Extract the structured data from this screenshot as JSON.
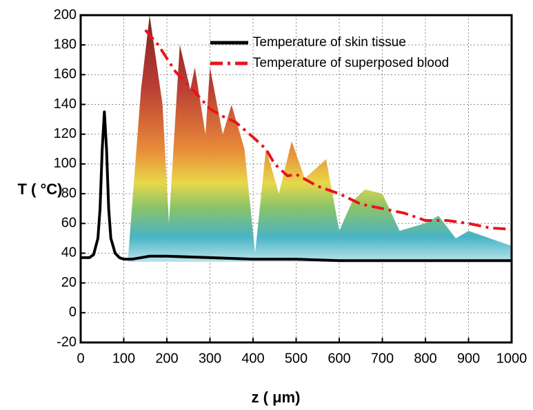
{
  "chart_data": {
    "type": "line",
    "x_label": "z ( μm)",
    "y_label": "T ( °C)",
    "xlim": [
      0,
      1000
    ],
    "xticks": [
      0,
      100,
      200,
      300,
      400,
      500,
      600,
      700,
      800,
      900,
      1000
    ],
    "ylim": [
      -20,
      200
    ],
    "yticks": [
      -20,
      0,
      20,
      40,
      60,
      80,
      100,
      120,
      140,
      160,
      180,
      200
    ],
    "grid": true,
    "series": [
      {
        "name": "Temperature of skin tissue",
        "color": "#000000",
        "linestyle": "solid",
        "x": [
          0,
          20,
          30,
          40,
          45,
          50,
          55,
          60,
          65,
          70,
          80,
          90,
          100,
          120,
          140,
          160,
          200,
          300,
          400,
          500,
          600,
          700,
          800,
          900,
          1000
        ],
        "values": [
          37,
          37,
          39,
          50,
          70,
          110,
          135,
          110,
          70,
          50,
          40,
          37,
          36,
          36,
          37,
          38,
          38,
          37,
          36,
          36,
          35,
          35,
          35,
          35,
          35
        ]
      },
      {
        "name": "Temperature of superposed blood",
        "color": "#e8141c",
        "linestyle": "dashdot",
        "x": [
          150,
          180,
          220,
          260,
          300,
          330,
          360,
          400,
          430,
          450,
          480,
          500,
          550,
          600,
          650,
          700,
          750,
          800,
          850,
          900,
          950,
          1000
        ],
        "values": [
          190,
          180,
          162,
          150,
          137,
          132,
          128,
          118,
          110,
          100,
          92,
          93,
          85,
          80,
          73,
          70,
          67,
          62,
          62,
          60,
          57,
          56
        ]
      }
    ]
  }
}
